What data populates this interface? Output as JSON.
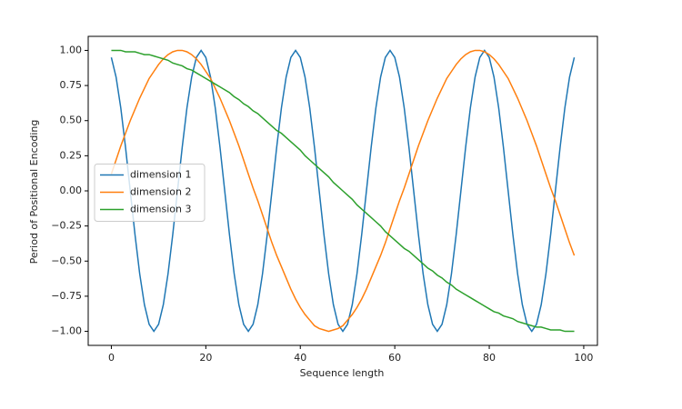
{
  "chart_data": {
    "type": "line",
    "xlabel": "Sequence length",
    "ylabel": "Period of Positional Encoding",
    "x": [
      0,
      1,
      2,
      3,
      4,
      5,
      6,
      7,
      8,
      9,
      10,
      11,
      12,
      13,
      14,
      15,
      16,
      17,
      18,
      19,
      20,
      21,
      22,
      23,
      24,
      25,
      26,
      27,
      28,
      29,
      30,
      31,
      32,
      33,
      34,
      35,
      36,
      37,
      38,
      39,
      40,
      41,
      42,
      43,
      44,
      45,
      46,
      47,
      48,
      49,
      50,
      51,
      52,
      53,
      54,
      55,
      56,
      57,
      58,
      59,
      60,
      61,
      62,
      63,
      64,
      65,
      66,
      67,
      68,
      69,
      70,
      71,
      72,
      73,
      74,
      75,
      76,
      77,
      78,
      79,
      80,
      81,
      82,
      83,
      84,
      85,
      86,
      87,
      88,
      89,
      90,
      91,
      92,
      93,
      94,
      95,
      96,
      97,
      98
    ],
    "series": [
      {
        "name": "dimension 1",
        "color": "#1f77b4",
        "values": [
          0.95,
          0.81,
          0.59,
          0.31,
          0,
          -0.31,
          -0.59,
          -0.81,
          -0.95,
          -1,
          -0.95,
          -0.81,
          -0.59,
          -0.31,
          0,
          0.31,
          0.59,
          0.81,
          0.95,
          1,
          0.95,
          0.81,
          0.59,
          0.31,
          0,
          -0.31,
          -0.59,
          -0.81,
          -0.95,
          -1,
          -0.95,
          -0.81,
          -0.59,
          -0.31,
          0,
          0.31,
          0.59,
          0.81,
          0.95,
          1,
          0.95,
          0.81,
          0.59,
          0.31,
          0,
          -0.31,
          -0.59,
          -0.81,
          -0.95,
          -1,
          -0.95,
          -0.81,
          -0.59,
          -0.31,
          0,
          0.31,
          0.59,
          0.81,
          0.95,
          1,
          0.95,
          0.81,
          0.59,
          0.31,
          0,
          -0.31,
          -0.59,
          -0.81,
          -0.95,
          -1,
          -0.95,
          -0.81,
          -0.59,
          -0.31,
          0,
          0.31,
          0.59,
          0.81,
          0.95,
          1,
          0.95,
          0.81,
          0.59,
          0.31,
          0,
          -0.31,
          -0.59,
          -0.81,
          -0.95,
          -1,
          -0.95,
          -0.81,
          -0.59,
          -0.31,
          0,
          0.31,
          0.59,
          0.81,
          0.95
        ]
      },
      {
        "name": "dimension 2",
        "color": "#ff7f0e",
        "values": [
          0.12,
          0.22,
          0.32,
          0.41,
          0.5,
          0.58,
          0.66,
          0.73,
          0.8,
          0.85,
          0.9,
          0.94,
          0.97,
          0.99,
          1,
          1,
          0.99,
          0.97,
          0.94,
          0.9,
          0.85,
          0.8,
          0.73,
          0.66,
          0.58,
          0.5,
          0.41,
          0.32,
          0.22,
          0.12,
          0.02,
          -0.07,
          -0.17,
          -0.27,
          -0.37,
          -0.46,
          -0.54,
          -0.62,
          -0.7,
          -0.77,
          -0.83,
          -0.88,
          -0.92,
          -0.96,
          -0.98,
          -0.99,
          -1,
          -0.99,
          -0.98,
          -0.96,
          -0.92,
          -0.88,
          -0.83,
          -0.77,
          -0.7,
          -0.62,
          -0.54,
          -0.46,
          -0.37,
          -0.27,
          -0.17,
          -0.07,
          0.02,
          0.12,
          0.22,
          0.32,
          0.41,
          0.5,
          0.58,
          0.66,
          0.73,
          0.8,
          0.85,
          0.9,
          0.94,
          0.97,
          0.99,
          1,
          1,
          0.99,
          0.97,
          0.94,
          0.9,
          0.85,
          0.8,
          0.73,
          0.66,
          0.58,
          0.5,
          0.41,
          0.32,
          0.22,
          0.12,
          0.02,
          -0.07,
          -0.17,
          -0.27,
          -0.37,
          -0.46
        ]
      },
      {
        "name": "dimension 3",
        "color": "#2ca02c",
        "values": [
          1,
          1,
          1,
          0.99,
          0.99,
          0.99,
          0.98,
          0.97,
          0.97,
          0.96,
          0.95,
          0.94,
          0.93,
          0.91,
          0.9,
          0.89,
          0.87,
          0.86,
          0.84,
          0.82,
          0.8,
          0.78,
          0.76,
          0.74,
          0.72,
          0.7,
          0.67,
          0.65,
          0.62,
          0.6,
          0.57,
          0.55,
          0.52,
          0.49,
          0.46,
          0.43,
          0.41,
          0.38,
          0.35,
          0.32,
          0.29,
          0.25,
          0.22,
          0.19,
          0.16,
          0.13,
          0.1,
          0.06,
          0.03,
          0,
          -0.03,
          -0.06,
          -0.1,
          -0.13,
          -0.16,
          -0.19,
          -0.22,
          -0.25,
          -0.29,
          -0.32,
          -0.35,
          -0.38,
          -0.41,
          -0.43,
          -0.46,
          -0.49,
          -0.52,
          -0.55,
          -0.57,
          -0.6,
          -0.62,
          -0.65,
          -0.67,
          -0.7,
          -0.72,
          -0.74,
          -0.76,
          -0.78,
          -0.8,
          -0.82,
          -0.84,
          -0.86,
          -0.87,
          -0.89,
          -0.9,
          -0.91,
          -0.93,
          -0.94,
          -0.95,
          -0.96,
          -0.97,
          -0.97,
          -0.98,
          -0.99,
          -0.99,
          -0.99,
          -1,
          -1,
          -1
        ]
      }
    ],
    "xlim": [
      -4.9,
      102.9
    ],
    "ylim": [
      -1.1,
      1.1
    ],
    "xticks": [
      0,
      20,
      40,
      60,
      80,
      100
    ],
    "yticks": [
      {
        "value": -1,
        "label": "−1.00"
      },
      {
        "value": -0.75,
        "label": "−0.75"
      },
      {
        "value": -0.5,
        "label": "−0.50"
      },
      {
        "value": -0.25,
        "label": "−0.25"
      },
      {
        "value": 0,
        "label": "0.00"
      },
      {
        "value": 0.25,
        "label": "0.25"
      },
      {
        "value": 0.5,
        "label": "0.50"
      },
      {
        "value": 0.75,
        "label": "0.75"
      },
      {
        "value": 1,
        "label": "1.00"
      }
    ],
    "grid": false,
    "legend": "center left"
  }
}
